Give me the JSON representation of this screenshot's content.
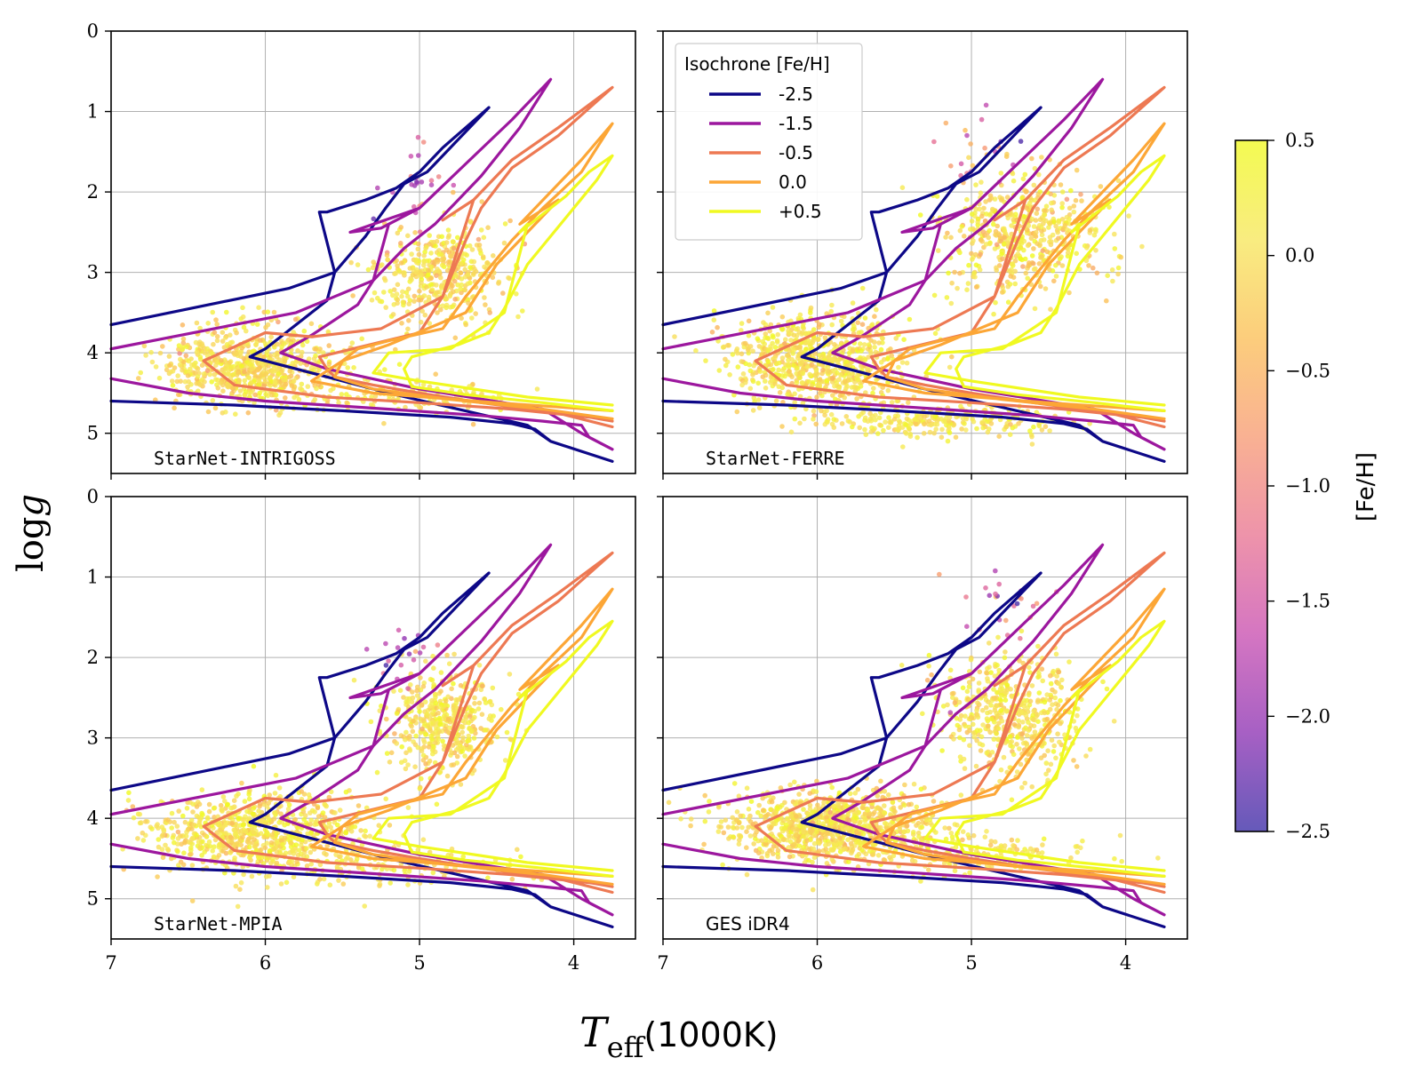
{
  "chart_data": {
    "type": "scatter",
    "figure_title": "",
    "xlabel_italic": "T",
    "xlabel_sub": "eff",
    "xlabel_unit": "(1000K)",
    "ylabel_prefix": "log",
    "ylabel_var": "g",
    "xlim": [
      7.0,
      3.6
    ],
    "ylim": [
      5.5,
      0.0
    ],
    "x_ticks": [
      7,
      6,
      5,
      4
    ],
    "x_tick_labels": [
      "7",
      "6",
      "5",
      "4"
    ],
    "y_ticks": [
      0,
      1,
      2,
      3,
      4,
      5
    ],
    "y_tick_labels": [
      "0",
      "1",
      "2",
      "3",
      "4",
      "5"
    ],
    "grid": true,
    "panels": [
      {
        "name": "StarNet-INTRIGOSS",
        "font": "mono"
      },
      {
        "name": "StarNet-FERRE",
        "font": "mono"
      },
      {
        "name": "StarNet-MPIA",
        "font": "mono"
      },
      {
        "name": "GES iDR4",
        "font": "sans"
      }
    ],
    "legend": {
      "title": "Isochrone [Fe/H]",
      "placement": "top-left of upper-right panel",
      "entries": [
        {
          "label": "-2.5",
          "color": "#0d0887"
        },
        {
          "label": "-1.5",
          "color": "#9c179e"
        },
        {
          "label": "-0.5",
          "color": "#ed7953"
        },
        {
          "label": "0.0",
          "color": "#fca636"
        },
        {
          "label": "+0.5",
          "color": "#f0f921"
        }
      ]
    },
    "isochrones": [
      {
        "feh": "-2.5",
        "color": "#0d0887",
        "points": [
          [
            7.0,
            4.6
          ],
          [
            6.2,
            4.65
          ],
          [
            5.5,
            4.72
          ],
          [
            4.8,
            4.8
          ],
          [
            4.4,
            4.88
          ],
          [
            4.25,
            4.95
          ],
          [
            4.15,
            5.1
          ],
          [
            3.75,
            5.35
          ],
          [
            4.15,
            5.1
          ],
          [
            4.3,
            4.9
          ],
          [
            5.2,
            4.5
          ],
          [
            5.7,
            4.25
          ],
          [
            6.1,
            4.05
          ],
          [
            6.0,
            3.95
          ],
          [
            5.6,
            3.35
          ],
          [
            5.55,
            3.0
          ],
          [
            5.35,
            2.55
          ],
          [
            5.22,
            2.2
          ],
          [
            5.1,
            1.9
          ],
          [
            4.95,
            1.75
          ],
          [
            4.55,
            0.95
          ],
          [
            4.85,
            1.45
          ],
          [
            5.0,
            1.75
          ],
          [
            5.15,
            1.95
          ],
          [
            5.35,
            2.1
          ],
          [
            5.6,
            2.25
          ],
          [
            5.65,
            2.25
          ],
          [
            5.55,
            3.0
          ],
          [
            5.85,
            3.2
          ],
          [
            7.0,
            3.65
          ]
        ]
      },
      {
        "feh": "-1.5",
        "color": "#9c179e",
        "points": [
          [
            7.0,
            4.32
          ],
          [
            6.5,
            4.5
          ],
          [
            6.0,
            4.6
          ],
          [
            5.2,
            4.7
          ],
          [
            4.6,
            4.78
          ],
          [
            4.2,
            4.85
          ],
          [
            3.95,
            4.9
          ],
          [
            3.9,
            5.05
          ],
          [
            3.75,
            5.2
          ],
          [
            3.95,
            5.0
          ],
          [
            4.2,
            4.7
          ],
          [
            5.0,
            4.45
          ],
          [
            5.6,
            4.2
          ],
          [
            5.9,
            4.0
          ],
          [
            5.7,
            3.78
          ],
          [
            5.4,
            3.4
          ],
          [
            5.3,
            3.1
          ],
          [
            5.1,
            2.7
          ],
          [
            4.9,
            2.4
          ],
          [
            4.6,
            1.8
          ],
          [
            4.35,
            1.2
          ],
          [
            4.15,
            0.6
          ],
          [
            4.4,
            1.1
          ],
          [
            4.7,
            1.65
          ],
          [
            5.0,
            2.2
          ],
          [
            5.25,
            2.45
          ],
          [
            5.45,
            2.5
          ],
          [
            5.0,
            2.2
          ],
          [
            5.2,
            2.4
          ],
          [
            5.3,
            3.1
          ],
          [
            5.8,
            3.5
          ],
          [
            7.0,
            3.95
          ]
        ]
      },
      {
        "feh": "-0.5",
        "color": "#ed7953",
        "points": [
          [
            3.75,
            4.92
          ],
          [
            4.1,
            4.75
          ],
          [
            4.6,
            4.62
          ],
          [
            5.0,
            4.5
          ],
          [
            5.3,
            4.4
          ],
          [
            5.55,
            4.3
          ],
          [
            5.6,
            4.2
          ],
          [
            5.65,
            4.05
          ],
          [
            5.0,
            3.75
          ],
          [
            4.85,
            3.3
          ],
          [
            4.7,
            2.6
          ],
          [
            4.6,
            2.2
          ],
          [
            4.4,
            1.7
          ],
          [
            4.1,
            1.3
          ],
          [
            3.75,
            0.7
          ],
          [
            4.1,
            1.2
          ],
          [
            4.4,
            1.6
          ],
          [
            4.65,
            2.1
          ],
          [
            4.85,
            2.35
          ],
          [
            4.65,
            2.1
          ],
          [
            4.85,
            3.3
          ],
          [
            5.25,
            3.7
          ],
          [
            5.7,
            3.8
          ],
          [
            6.0,
            3.75
          ],
          [
            6.4,
            4.1
          ],
          [
            6.2,
            4.4
          ],
          [
            5.6,
            4.55
          ],
          [
            5.0,
            4.62
          ],
          [
            4.4,
            4.7
          ],
          [
            3.9,
            4.8
          ],
          [
            3.75,
            4.85
          ]
        ]
      },
      {
        "feh": "0.0",
        "color": "#fca636",
        "points": [
          [
            3.75,
            4.82
          ],
          [
            4.2,
            4.7
          ],
          [
            4.8,
            4.58
          ],
          [
            5.3,
            4.45
          ],
          [
            5.55,
            4.3
          ],
          [
            5.5,
            4.1
          ],
          [
            5.4,
            3.95
          ],
          [
            5.2,
            3.85
          ],
          [
            4.85,
            3.7
          ],
          [
            4.7,
            3.3
          ],
          [
            4.55,
            2.95
          ],
          [
            4.4,
            2.6
          ],
          [
            4.2,
            2.2
          ],
          [
            3.95,
            1.75
          ],
          [
            3.75,
            1.15
          ],
          [
            3.95,
            1.6
          ],
          [
            4.3,
            2.3
          ],
          [
            4.35,
            2.4
          ],
          [
            4.1,
            2.1
          ],
          [
            4.5,
            2.9
          ],
          [
            4.7,
            3.5
          ],
          [
            5.2,
            3.9
          ],
          [
            5.5,
            4.1
          ],
          [
            5.7,
            4.35
          ],
          [
            5.3,
            4.5
          ],
          [
            4.5,
            4.62
          ],
          [
            3.75,
            4.72
          ]
        ]
      },
      {
        "feh": "+0.5",
        "color": "#f0f921",
        "points": [
          [
            3.75,
            4.72
          ],
          [
            4.2,
            4.62
          ],
          [
            4.7,
            4.52
          ],
          [
            5.05,
            4.42
          ],
          [
            5.1,
            4.2
          ],
          [
            5.05,
            4.05
          ],
          [
            4.75,
            3.9
          ],
          [
            4.55,
            3.75
          ],
          [
            4.45,
            3.45
          ],
          [
            4.3,
            2.9
          ],
          [
            4.15,
            2.55
          ],
          [
            4.0,
            2.2
          ],
          [
            3.85,
            1.85
          ],
          [
            3.75,
            1.55
          ],
          [
            3.9,
            1.75
          ],
          [
            4.05,
            2.05
          ],
          [
            4.25,
            2.35
          ],
          [
            4.35,
            2.5
          ],
          [
            4.3,
            2.4
          ],
          [
            4.45,
            3.5
          ],
          [
            4.8,
            3.95
          ],
          [
            5.2,
            4.0
          ],
          [
            5.3,
            4.25
          ],
          [
            5.0,
            4.35
          ],
          [
            4.3,
            4.55
          ],
          [
            3.75,
            4.65
          ]
        ]
      }
    ],
    "series": [
      {
        "name": "StarNet-INTRIGOSS stars",
        "clusters": [
          {
            "x": 6.1,
            "y": 4.15,
            "sx": 0.3,
            "sy": 0.25,
            "n": 700,
            "feh": 0.0,
            "sfeh": 0.25
          },
          {
            "x": 4.85,
            "y": 3.0,
            "sx": 0.2,
            "sy": 0.3,
            "n": 420,
            "feh": 0.0,
            "sfeh": 0.25
          },
          {
            "x": 5.1,
            "y": 4.55,
            "sx": 0.4,
            "sy": 0.12,
            "n": 120,
            "feh": 0.05,
            "sfeh": 0.2
          },
          {
            "x": 5.05,
            "y": 1.9,
            "sx": 0.1,
            "sy": 0.25,
            "n": 22,
            "feh": -1.6,
            "sfeh": 0.4
          }
        ]
      },
      {
        "name": "StarNet-FERRE stars",
        "clusters": [
          {
            "x": 6.0,
            "y": 4.1,
            "sx": 0.28,
            "sy": 0.3,
            "n": 750,
            "feh": 0.05,
            "sfeh": 0.25
          },
          {
            "x": 4.65,
            "y": 2.55,
            "sx": 0.25,
            "sy": 0.35,
            "n": 500,
            "feh": 0.0,
            "sfeh": 0.3
          },
          {
            "x": 5.2,
            "y": 4.85,
            "sx": 0.4,
            "sy": 0.1,
            "n": 250,
            "feh": 0.05,
            "sfeh": 0.2
          },
          {
            "x": 4.85,
            "y": 1.5,
            "sx": 0.15,
            "sy": 0.3,
            "n": 25,
            "feh": -1.2,
            "sfeh": 0.5
          }
        ]
      },
      {
        "name": "StarNet-MPIA stars",
        "clusters": [
          {
            "x": 6.05,
            "y": 4.2,
            "sx": 0.35,
            "sy": 0.25,
            "n": 800,
            "feh": 0.05,
            "sfeh": 0.25
          },
          {
            "x": 4.85,
            "y": 2.8,
            "sx": 0.18,
            "sy": 0.3,
            "n": 420,
            "feh": 0.05,
            "sfeh": 0.25
          },
          {
            "x": 5.05,
            "y": 4.6,
            "sx": 0.35,
            "sy": 0.12,
            "n": 100,
            "feh": 0.05,
            "sfeh": 0.2
          },
          {
            "x": 5.1,
            "y": 2.0,
            "sx": 0.1,
            "sy": 0.15,
            "n": 18,
            "feh": -1.6,
            "sfeh": 0.4
          }
        ]
      },
      {
        "name": "GES iDR4 stars",
        "clusters": [
          {
            "x": 5.9,
            "y": 4.1,
            "sx": 0.35,
            "sy": 0.22,
            "n": 900,
            "feh": 0.0,
            "sfeh": 0.25
          },
          {
            "x": 4.75,
            "y": 2.7,
            "sx": 0.22,
            "sy": 0.35,
            "n": 500,
            "feh": 0.05,
            "sfeh": 0.25
          },
          {
            "x": 5.0,
            "y": 4.45,
            "sx": 0.4,
            "sy": 0.12,
            "n": 150,
            "feh": 0.05,
            "sfeh": 0.2
          },
          {
            "x": 4.85,
            "y": 1.4,
            "sx": 0.15,
            "sy": 0.3,
            "n": 25,
            "feh": -1.3,
            "sfeh": 0.5
          }
        ]
      }
    ],
    "colorbar": {
      "label": "[Fe/H]",
      "range": [
        -2.5,
        0.5
      ],
      "ticks": [
        0.5,
        0.0,
        -0.5,
        -1.0,
        -1.5,
        -2.0,
        -2.5
      ],
      "tick_labels": [
        "0.5",
        "0.0",
        "−0.5",
        "−1.0",
        "−1.5",
        "−2.0",
        "−2.5"
      ],
      "colors": [
        "#3a2ba6",
        "#8e33b3",
        "#c94fb0",
        "#e97592",
        "#f79b74",
        "#fbbf57",
        "#f7e75c",
        "#f0f921"
      ]
    }
  }
}
